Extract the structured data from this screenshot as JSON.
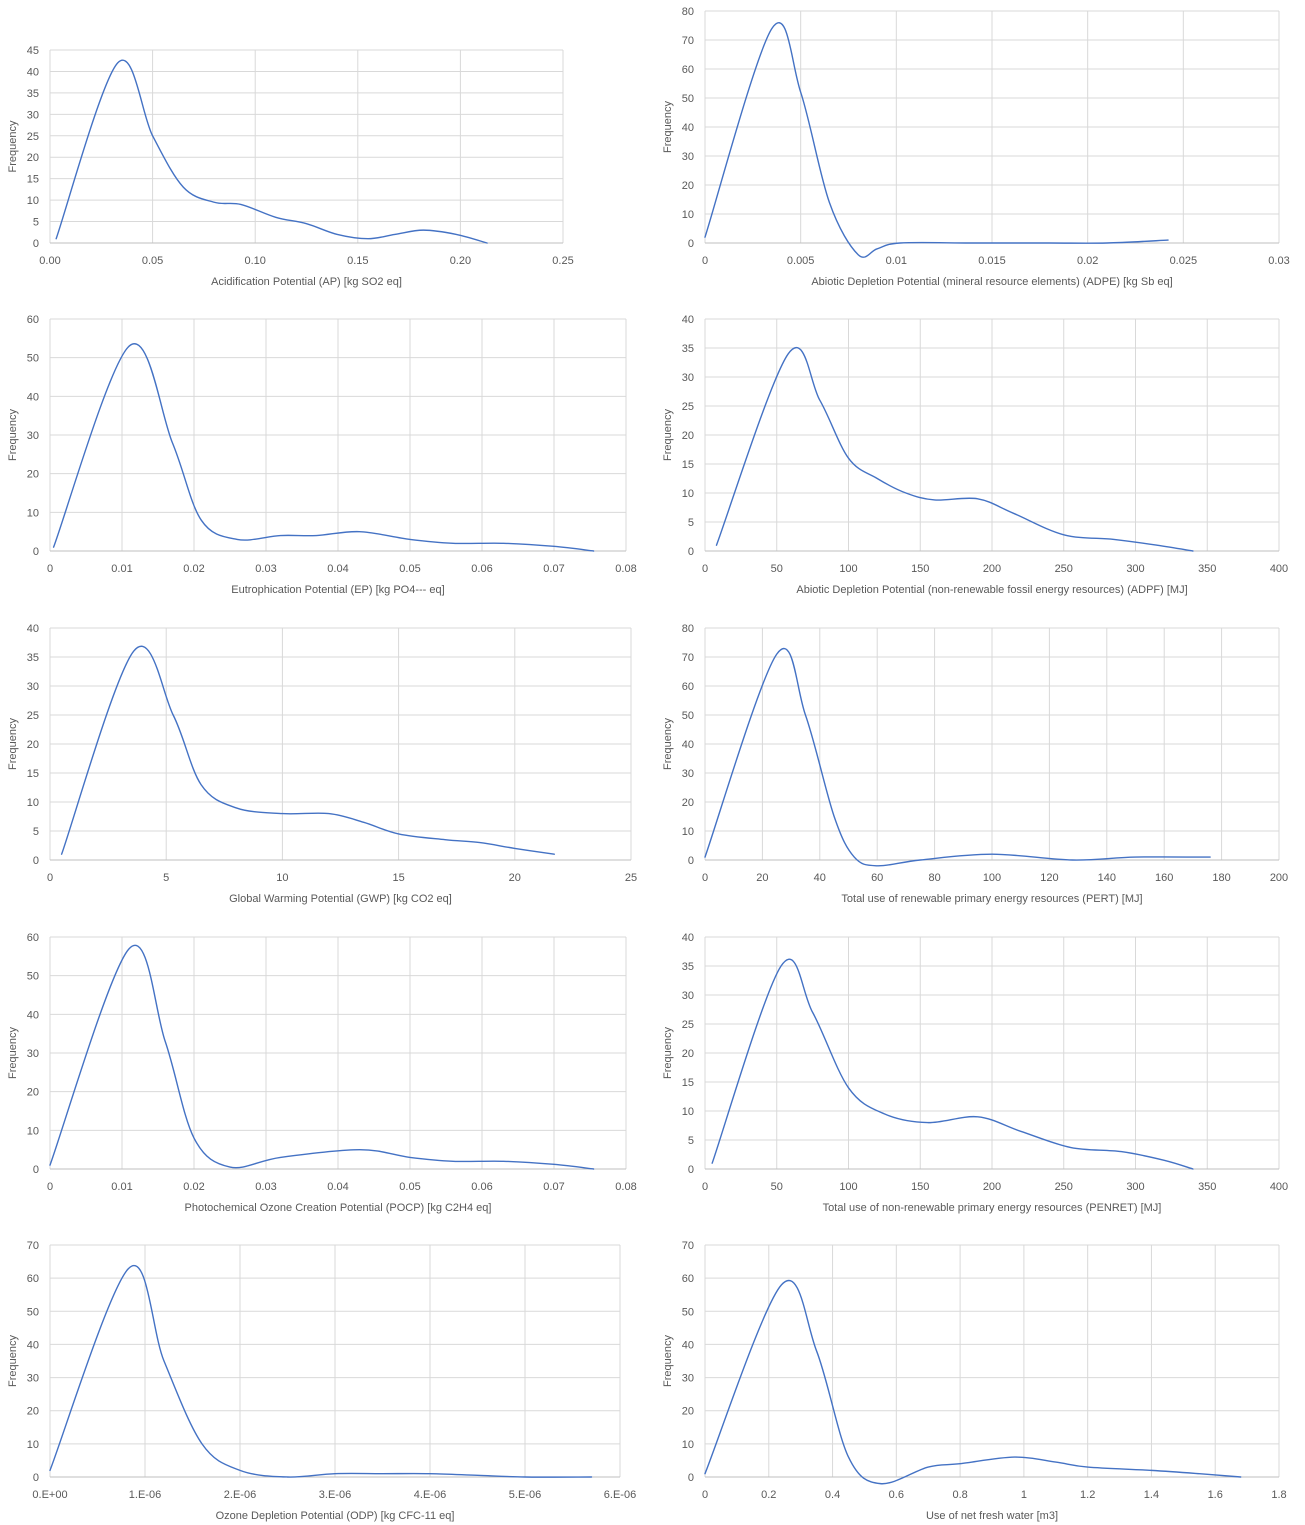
{
  "colors": {
    "series": "#4472c4",
    "grid": "#d9d9d9",
    "text": "#595959"
  },
  "chart_data": [
    {
      "type": "line",
      "smooth": true,
      "grid": true,
      "xlabel": "Acidification Potential (AP) [kg SO2 eq]",
      "ylabel": "Frequency",
      "xlim": [
        0,
        0.25
      ],
      "ylim": [
        0,
        45
      ],
      "xticks": [
        0,
        0.05,
        0.1,
        0.15,
        0.2,
        0.25
      ],
      "xtick_labels": [
        "0.00",
        "0.05",
        "0.10",
        "0.15",
        "0.20",
        "0.25"
      ],
      "yticks": [
        0,
        5,
        10,
        15,
        20,
        25,
        30,
        35,
        40,
        45
      ],
      "series": [
        {
          "x": [
            0.003,
            0.033,
            0.05,
            0.065,
            0.08,
            0.093,
            0.11,
            0.125,
            0.14,
            0.155,
            0.168,
            0.182,
            0.198,
            0.213
          ],
          "y": [
            1,
            42,
            25,
            13,
            9.5,
            9,
            6,
            4.5,
            2,
            1,
            2,
            3,
            2,
            0
          ]
        }
      ]
    },
    {
      "type": "line",
      "smooth": true,
      "grid": true,
      "xlabel": "Abiotic Depletion Potential (mineral resource elements) (ADPE) [kg Sb eq]",
      "ylabel": "Frequency",
      "xlim": [
        0,
        0.03
      ],
      "ylim": [
        0,
        80
      ],
      "xticks": [
        0,
        0.005,
        0.01,
        0.015,
        0.02,
        0.025,
        0.03
      ],
      "xtick_labels": [
        "0",
        "0.005",
        "0.01",
        "0.015",
        "0.02",
        "0.025",
        "0.03"
      ],
      "yticks": [
        0,
        10,
        20,
        30,
        40,
        50,
        60,
        70,
        80
      ],
      "series": [
        {
          "x": [
            0,
            0.0035,
            0.005,
            0.0065,
            0.008,
            0.009,
            0.0102,
            0.014,
            0.018,
            0.021,
            0.0242
          ],
          "y": [
            2,
            74,
            52,
            14,
            -4,
            -2,
            0,
            0,
            0,
            0,
            1
          ]
        }
      ]
    },
    {
      "type": "line",
      "smooth": true,
      "grid": true,
      "xlabel": "Eutrophication Potential (EP) [kg PO4--- eq]",
      "ylabel": "Frequency",
      "xlim": [
        0,
        0.08
      ],
      "ylim": [
        0,
        60
      ],
      "xticks": [
        0,
        0.01,
        0.02,
        0.03,
        0.04,
        0.05,
        0.06,
        0.07,
        0.08
      ],
      "xtick_labels": [
        "0",
        "0.01",
        "0.02",
        "0.03",
        "0.04",
        "0.05",
        "0.06",
        "0.07",
        "0.08"
      ],
      "yticks": [
        0,
        10,
        20,
        30,
        40,
        50,
        60
      ],
      "series": [
        {
          "x": [
            0.0005,
            0.011,
            0.017,
            0.021,
            0.026,
            0.032,
            0.037,
            0.043,
            0.05,
            0.056,
            0.063,
            0.07,
            0.0755
          ],
          "y": [
            1,
            53,
            28,
            8,
            3,
            4,
            4,
            5,
            3,
            2,
            2,
            1.2,
            0
          ]
        }
      ]
    },
    {
      "type": "line",
      "smooth": true,
      "grid": true,
      "xlabel": "Abiotic Depletion Potential (non-renewable fossil energy resources) (ADPF) [MJ]",
      "ylabel": "Frequency",
      "xlim": [
        0,
        400
      ],
      "ylim": [
        0,
        40
      ],
      "xticks": [
        0,
        50,
        100,
        150,
        200,
        250,
        300,
        350,
        400
      ],
      "xtick_labels": [
        "0",
        "50",
        "100",
        "150",
        "200",
        "250",
        "300",
        "350",
        "400"
      ],
      "yticks": [
        0,
        5,
        10,
        15,
        20,
        25,
        30,
        35,
        40
      ],
      "series": [
        {
          "x": [
            8,
            58,
            80,
            100,
            120,
            140,
            160,
            190,
            215,
            250,
            285,
            315,
            340
          ],
          "y": [
            1,
            34,
            26,
            16,
            12.5,
            10,
            8.8,
            9,
            6.5,
            2.8,
            2,
            1,
            0
          ]
        }
      ]
    },
    {
      "type": "line",
      "smooth": true,
      "grid": true,
      "xlabel": "Global Warming Potential (GWP) [kg CO2 eq]",
      "ylabel": "Frequency",
      "xlim": [
        0,
        25
      ],
      "ylim": [
        0,
        40
      ],
      "xticks": [
        0,
        5,
        10,
        15,
        20,
        25
      ],
      "xtick_labels": [
        "0",
        "5",
        "10",
        "15",
        "20",
        "25"
      ],
      "yticks": [
        0,
        5,
        10,
        15,
        20,
        25,
        30,
        35,
        40
      ],
      "series": [
        {
          "x": [
            0.5,
            3.6,
            5.3,
            6.5,
            8,
            10,
            12,
            13.5,
            15,
            17,
            18.5,
            20,
            21.7
          ],
          "y": [
            1,
            36,
            25,
            13,
            9,
            8,
            8,
            6.5,
            4.5,
            3.5,
            3,
            2,
            1
          ]
        }
      ]
    },
    {
      "type": "line",
      "smooth": true,
      "grid": true,
      "xlabel": "Total use of renewable primary energy resources (PERT) [MJ]",
      "ylabel": "Frequency",
      "xlim": [
        0,
        200
      ],
      "ylim": [
        0,
        80
      ],
      "xticks": [
        0,
        20,
        40,
        60,
        80,
        100,
        120,
        140,
        160,
        180,
        200
      ],
      "xtick_labels": [
        "0",
        "20",
        "40",
        "60",
        "80",
        "100",
        "120",
        "140",
        "160",
        "180",
        "200"
      ],
      "yticks": [
        0,
        10,
        20,
        30,
        40,
        50,
        60,
        70,
        80
      ],
      "series": [
        {
          "x": [
            0,
            25,
            35,
            45,
            52,
            60,
            75,
            100,
            128,
            150,
            176
          ],
          "y": [
            1,
            71,
            50,
            15,
            1,
            -2,
            0,
            2,
            0,
            1,
            1
          ]
        }
      ]
    },
    {
      "type": "line",
      "smooth": true,
      "grid": true,
      "xlabel": "Photochemical Ozone Creation Potential (POCP) [kg C2H4 eq]",
      "ylabel": "Frequency",
      "xlim": [
        0,
        0.08
      ],
      "ylim": [
        0,
        60
      ],
      "xticks": [
        0,
        0.01,
        0.02,
        0.03,
        0.04,
        0.05,
        0.06,
        0.07,
        0.08
      ],
      "xtick_labels": [
        "0",
        "0.01",
        "0.02",
        "0.03",
        "0.04",
        "0.05",
        "0.06",
        "0.07",
        "0.08"
      ],
      "yticks": [
        0,
        10,
        20,
        30,
        40,
        50,
        60
      ],
      "series": [
        {
          "x": [
            0,
            0.011,
            0.016,
            0.02,
            0.025,
            0.032,
            0.043,
            0.05,
            0.056,
            0.063,
            0.07,
            0.0755
          ],
          "y": [
            1,
            57,
            33,
            8,
            0.5,
            3,
            5,
            3,
            2,
            2,
            1.2,
            0
          ]
        }
      ]
    },
    {
      "type": "line",
      "smooth": true,
      "grid": true,
      "xlabel": "Total use of non-renewable primary energy resources (PENRET) [MJ]",
      "ylabel": "Frequency",
      "xlim": [
        0,
        400
      ],
      "ylim": [
        0,
        40
      ],
      "xticks": [
        0,
        50,
        100,
        150,
        200,
        250,
        300,
        350,
        400
      ],
      "xtick_labels": [
        "0",
        "50",
        "100",
        "150",
        "200",
        "250",
        "300",
        "350",
        "400"
      ],
      "yticks": [
        0,
        5,
        10,
        15,
        20,
        25,
        30,
        35,
        40
      ],
      "series": [
        {
          "x": [
            5,
            53,
            75,
            100,
            125,
            155,
            190,
            220,
            255,
            290,
            320,
            340
          ],
          "y": [
            1,
            35,
            27,
            14,
            9.5,
            8,
            9,
            6.5,
            3.7,
            3,
            1.5,
            0
          ]
        }
      ]
    },
    {
      "type": "line",
      "smooth": true,
      "grid": true,
      "xlabel": "Ozone Depletion Potential (ODP) [kg CFC-11 eq]",
      "ylabel": "Frequency",
      "xlim": [
        0,
        6e-06
      ],
      "ylim": [
        0,
        70
      ],
      "xticks": [
        0,
        1e-06,
        2e-06,
        3e-06,
        4e-06,
        5e-06,
        6e-06
      ],
      "xtick_labels": [
        "0.E+00",
        "1.E-06",
        "2.E-06",
        "3.E-06",
        "4.E-06",
        "5.E-06",
        "6.E-06"
      ],
      "yticks": [
        0,
        10,
        20,
        30,
        40,
        50,
        60,
        70
      ],
      "series": [
        {
          "x": [
            0,
            8.3e-07,
            1.2e-06,
            1.6e-06,
            2e-06,
            2.5e-06,
            3e-06,
            3.5e-06,
            4e-06,
            4.5e-06,
            5e-06,
            5.7e-06
          ],
          "y": [
            2,
            63,
            35,
            10,
            2,
            0,
            1,
            1,
            1,
            0.5,
            0,
            0
          ]
        }
      ]
    },
    {
      "type": "line",
      "smooth": true,
      "grid": true,
      "xlabel": "Use of net fresh water [m3]",
      "ylabel": "Frequency",
      "xlim": [
        0,
        1.8
      ],
      "ylim": [
        0,
        70
      ],
      "xticks": [
        0,
        0.2,
        0.4,
        0.6,
        0.8,
        1,
        1.2,
        1.4,
        1.6,
        1.8
      ],
      "xtick_labels": [
        "0",
        "0.2",
        "0.4",
        "0.6",
        "0.8",
        "1",
        "1.2",
        "1.4",
        "1.6",
        "1.8"
      ],
      "yticks": [
        0,
        10,
        20,
        30,
        40,
        50,
        60,
        70
      ],
      "series": [
        {
          "x": [
            0,
            0.24,
            0.35,
            0.45,
            0.55,
            0.7,
            0.8,
            0.97,
            1.1,
            1.2,
            1.4,
            1.55,
            1.68
          ],
          "y": [
            1,
            58,
            38,
            6,
            -2,
            3,
            4,
            6,
            4.5,
            3,
            2,
            1,
            0
          ]
        }
      ]
    }
  ]
}
